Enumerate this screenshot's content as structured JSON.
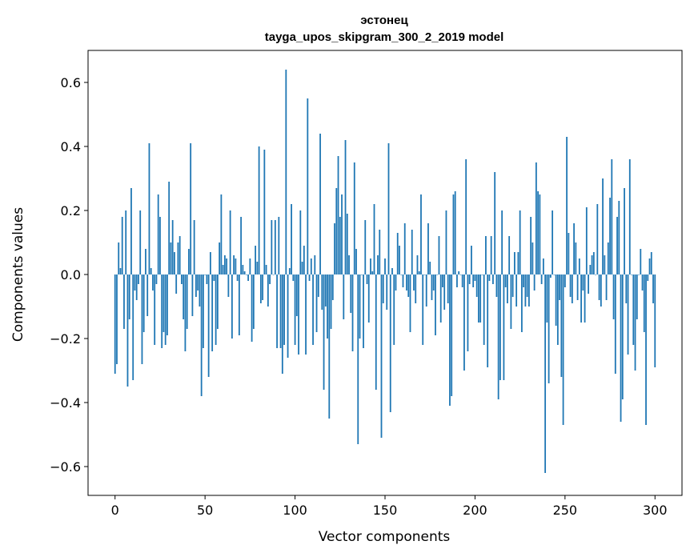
{
  "chart_data": {
    "type": "bar",
    "title": "эстонец",
    "subtitle": "tayga_upos_skipgram_300_2_2019 model",
    "xlabel": "Vector components",
    "ylabel": "Components values",
    "xlim": [
      -15,
      315
    ],
    "ylim": [
      -0.69,
      0.7
    ],
    "xticks": [
      0,
      50,
      100,
      150,
      200,
      250,
      300
    ],
    "xtick_labels": [
      "0",
      "50",
      "100",
      "150",
      "200",
      "250",
      "300"
    ],
    "yticks": [
      -0.6,
      -0.4,
      -0.2,
      0.0,
      0.2,
      0.4,
      0.6
    ],
    "ytick_labels": [
      "−0.6",
      "−0.4",
      "−0.2",
      "0.0",
      "0.2",
      "0.4",
      "0.6"
    ],
    "grid": false,
    "bar_color": "#1f77b4",
    "values": [
      -0.31,
      -0.28,
      0.1,
      0.02,
      0.18,
      -0.17,
      0.2,
      -0.35,
      -0.14,
      0.27,
      -0.33,
      -0.05,
      -0.08,
      -0.03,
      0.2,
      -0.28,
      -0.18,
      0.08,
      -0.13,
      0.41,
      0.02,
      -0.05,
      -0.22,
      -0.03,
      0.25,
      0.18,
      -0.23,
      -0.18,
      -0.22,
      -0.19,
      0.29,
      0.1,
      0.17,
      0.07,
      -0.06,
      0.1,
      0.12,
      -0.03,
      -0.14,
      -0.24,
      -0.17,
      0.08,
      0.41,
      -0.13,
      0.17,
      -0.07,
      -0.05,
      -0.1,
      -0.38,
      -0.23,
      0.0,
      -0.03,
      -0.32,
      0.07,
      -0.24,
      -0.02,
      -0.22,
      -0.17,
      0.1,
      0.25,
      0.03,
      0.06,
      0.05,
      -0.07,
      0.2,
      -0.2,
      0.06,
      0.05,
      -0.02,
      -0.19,
      0.18,
      0.03,
      0.01,
      0.0,
      -0.02,
      0.05,
      -0.21,
      -0.17,
      0.09,
      0.04,
      0.4,
      -0.09,
      -0.08,
      0.39,
      0.03,
      -0.1,
      -0.03,
      0.17,
      0.0,
      0.17,
      -0.23,
      0.18,
      -0.23,
      -0.31,
      -0.22,
      0.64,
      -0.26,
      0.02,
      0.22,
      -0.02,
      -0.22,
      -0.13,
      -0.25,
      0.2,
      0.04,
      0.09,
      -0.25,
      0.55,
      -0.02,
      0.05,
      -0.22,
      0.06,
      -0.18,
      -0.07,
      0.44,
      -0.11,
      -0.36,
      -0.1,
      -0.2,
      -0.45,
      -0.17,
      -0.08,
      0.16,
      0.27,
      0.37,
      0.18,
      0.25,
      -0.14,
      0.42,
      0.19,
      0.06,
      -0.12,
      -0.24,
      0.35,
      0.08,
      -0.53,
      -0.2,
      0.0,
      -0.23,
      0.17,
      -0.03,
      -0.15,
      0.05,
      0.01,
      0.22,
      -0.36,
      0.06,
      0.14,
      -0.51,
      -0.09,
      0.05,
      -0.11,
      0.41,
      -0.43,
      0.02,
      -0.22,
      -0.05,
      0.13,
      0.09,
      0.0,
      -0.04,
      0.16,
      -0.05,
      -0.07,
      -0.18,
      0.14,
      -0.05,
      -0.09,
      0.06,
      0.01,
      0.25,
      -0.22,
      0.0,
      -0.1,
      0.16,
      0.04,
      -0.08,
      -0.05,
      -0.19,
      0.0,
      0.12,
      -0.15,
      -0.04,
      -0.11,
      0.2,
      -0.09,
      -0.41,
      -0.38,
      0.25,
      0.26,
      -0.04,
      0.01,
      0.0,
      -0.04,
      -0.3,
      0.36,
      -0.24,
      -0.03,
      0.09,
      -0.04,
      -0.02,
      -0.07,
      -0.15,
      -0.15,
      0.0,
      -0.22,
      0.12,
      -0.29,
      -0.02,
      0.12,
      -0.03,
      0.32,
      -0.07,
      -0.39,
      -0.33,
      0.2,
      -0.33,
      -0.04,
      -0.09,
      0.12,
      -0.17,
      -0.07,
      0.07,
      -0.1,
      0.07,
      0.2,
      -0.18,
      -0.04,
      -0.1,
      -0.07,
      -0.1,
      0.18,
      0.1,
      -0.05,
      0.35,
      0.26,
      0.25,
      -0.03,
      0.05,
      -0.62,
      -0.15,
      -0.34,
      -0.01,
      0.2,
      0.0,
      -0.16,
      -0.22,
      -0.08,
      -0.32,
      -0.47,
      -0.04,
      0.43,
      0.13,
      -0.07,
      -0.09,
      0.16,
      0.1,
      -0.08,
      0.05,
      -0.15,
      -0.05,
      -0.15,
      0.21,
      -0.06,
      0.03,
      0.06,
      0.07,
      0.0,
      0.22,
      -0.08,
      -0.1,
      0.3,
      0.06,
      -0.08,
      0.1,
      0.24,
      0.36,
      -0.14,
      -0.31,
      0.18,
      0.23,
      -0.46,
      -0.39,
      0.27,
      -0.09,
      -0.25,
      0.36,
      0.0,
      -0.22,
      -0.3,
      -0.14,
      0.0,
      0.08,
      -0.05,
      -0.18,
      -0.47,
      -0.02,
      0.05,
      0.07,
      -0.09,
      -0.29
    ]
  }
}
